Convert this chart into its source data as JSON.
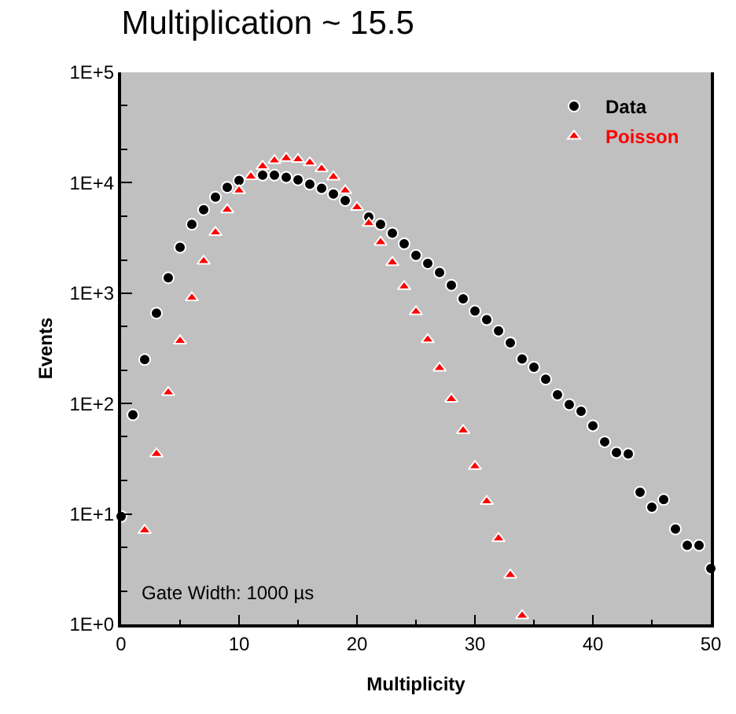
{
  "chart_data": {
    "type": "scatter",
    "title": "Multiplication ~ 15.5",
    "xlabel": "Multiplicity",
    "ylabel": "Events",
    "log": "y",
    "grid": false,
    "legend": "top right",
    "xlim": [
      0,
      50
    ],
    "xticks": [
      0,
      10,
      20,
      30,
      40,
      50
    ],
    "ylim": [
      1,
      100000
    ],
    "yticks": [
      {
        "value": 1,
        "label": "1E+0"
      },
      {
        "value": 10,
        "label": "1E+1"
      },
      {
        "value": 100,
        "label": "1E+2"
      },
      {
        "value": 1000,
        "label": "1E+3"
      },
      {
        "value": 10000,
        "label": "1E+4"
      },
      {
        "value": 100000,
        "label": "1E+5"
      }
    ],
    "annotations": [
      "Gate Width: 1000 µs"
    ],
    "series": [
      {
        "name": "Data",
        "color": "#000000",
        "marker": "circle",
        "x": [
          0,
          1,
          2,
          3,
          4,
          5,
          6,
          7,
          8,
          9,
          10,
          11,
          12,
          13,
          14,
          15,
          16,
          17,
          18,
          19,
          20,
          21,
          22,
          23,
          24,
          25,
          26,
          27,
          28,
          29,
          30,
          31,
          32,
          33,
          34,
          35,
          36,
          37,
          38,
          39,
          40,
          41,
          42,
          43,
          44,
          45,
          46,
          47,
          48,
          49,
          50
        ],
        "values": [
          9.5,
          79,
          250,
          660,
          1380,
          2600,
          4200,
          5700,
          7400,
          9100,
          10500,
          null,
          11700,
          11700,
          11200,
          10600,
          9700,
          8900,
          7900,
          6900,
          null,
          4900,
          4200,
          3500,
          2800,
          2200,
          1860,
          1540,
          1180,
          890,
          690,
          575,
          455,
          355,
          253,
          213,
          166,
          120,
          98,
          85,
          63,
          45,
          36,
          35,
          15.7,
          11.5,
          13.5,
          7.3,
          5.2,
          5.2,
          3.2
        ]
      },
      {
        "name": "Poisson",
        "color": "#ff0000",
        "marker": "triangle",
        "x": [
          2,
          3,
          4,
          5,
          6,
          7,
          8,
          9,
          10,
          11,
          12,
          13,
          14,
          15,
          16,
          17,
          18,
          19,
          20,
          21,
          22,
          23,
          24,
          25,
          26,
          27,
          28,
          29,
          30,
          31,
          32,
          33,
          34
        ],
        "values": [
          7.1,
          35,
          126,
          370,
          910,
          1950,
          3550,
          5700,
          8500,
          11400,
          14100,
          15900,
          16700,
          16300,
          15200,
          13400,
          11300,
          8500,
          6000,
          4300,
          2900,
          1900,
          1150,
          680,
          380,
          210,
          110,
          57,
          27,
          13,
          6.0,
          2.8,
          1.2
        ]
      }
    ]
  }
}
